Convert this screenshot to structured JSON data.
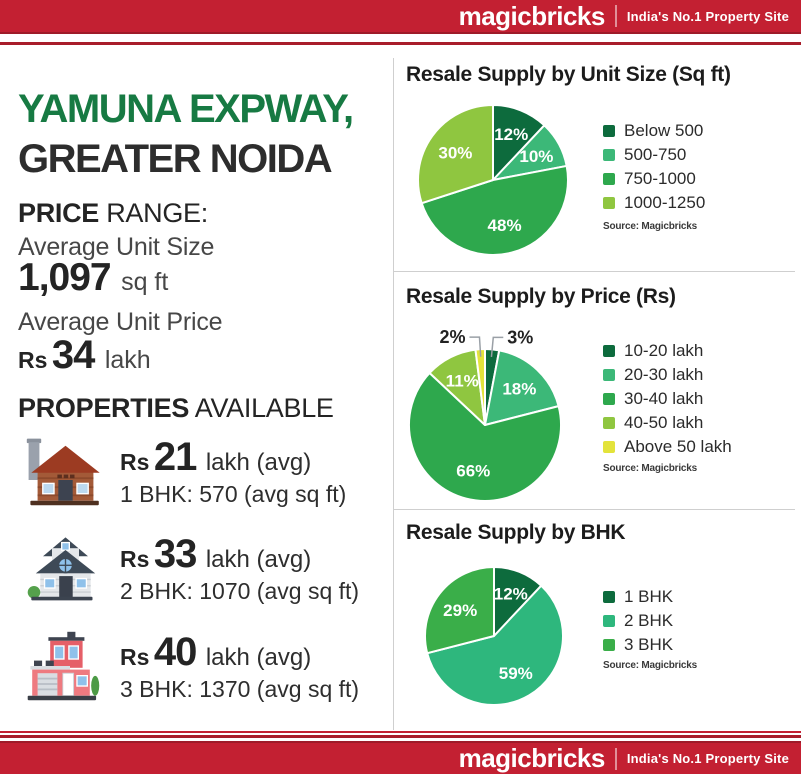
{
  "brand": {
    "logo": "magicbricks",
    "tagline": "India's No.1 Property Site"
  },
  "colors": {
    "brand_red": "#c32032",
    "brand_red_dark": "#9e1b29",
    "accent_green": "#177a43",
    "divider_gray": "#cfcfcf"
  },
  "location": {
    "line1": "YAMUNA EXPWAY,",
    "line2": "GREATER NOIDA"
  },
  "price_range": {
    "heading_bold": "PRICE",
    "heading_rest": "RANGE:",
    "avg_size_label": "Average Unit Size",
    "avg_size_value": "1,097",
    "avg_size_unit": "sq ft",
    "avg_price_label": "Average Unit Price",
    "avg_price_currency": "Rs",
    "avg_price_value": "34",
    "avg_price_unit": "lakh"
  },
  "properties": {
    "heading_bold": "PROPERTIES",
    "heading_rest": "AVAILABLE",
    "items": [
      {
        "icon": "house-1bhk-icon",
        "currency": "Rs",
        "price": "21",
        "suffix": "lakh (avg)",
        "detail": "1 BHK: 570 (avg sq ft)"
      },
      {
        "icon": "house-2bhk-icon",
        "currency": "Rs",
        "price": "33",
        "suffix": "lakh (avg)",
        "detail": "2 BHK: 1070 (avg sq ft)"
      },
      {
        "icon": "house-3bhk-icon",
        "currency": "Rs",
        "price": "40",
        "suffix": "lakh (avg)",
        "detail": "3 BHK: 1370 (avg sq ft)"
      }
    ]
  },
  "chart_data": [
    {
      "type": "pie",
      "title": "Resale Supply by Unit Size (Sq ft)",
      "labels": [
        "Below 500",
        "500-750",
        "750-1000",
        "1000-1250"
      ],
      "values": [
        12,
        10,
        48,
        30
      ],
      "colors": [
        "#0d6b3d",
        "#3cb878",
        "#2ea84d",
        "#8fc640"
      ],
      "legend_position": "right",
      "source": "Source: Magicbricks"
    },
    {
      "type": "pie",
      "title": "Resale Supply by Price (Rs)",
      "labels": [
        "10-20 lakh",
        "20-30 lakh",
        "30-40 lakh",
        "40-50 lakh",
        "Above 50 lakh"
      ],
      "values": [
        3,
        18,
        66,
        11,
        2
      ],
      "colors": [
        "#0d6b3d",
        "#3cb878",
        "#2ea84d",
        "#8fc640",
        "#e3e33b"
      ],
      "legend_position": "right",
      "source": "Source: Magicbricks"
    },
    {
      "type": "pie",
      "title": "Resale Supply by BHK",
      "labels": [
        "1 BHK",
        "2 BHK",
        "3 BHK"
      ],
      "values": [
        12,
        59,
        29
      ],
      "colors": [
        "#0d6b3d",
        "#2eb77d",
        "#3aae49"
      ],
      "legend_position": "right",
      "source": "Source: Magicbricks"
    }
  ]
}
